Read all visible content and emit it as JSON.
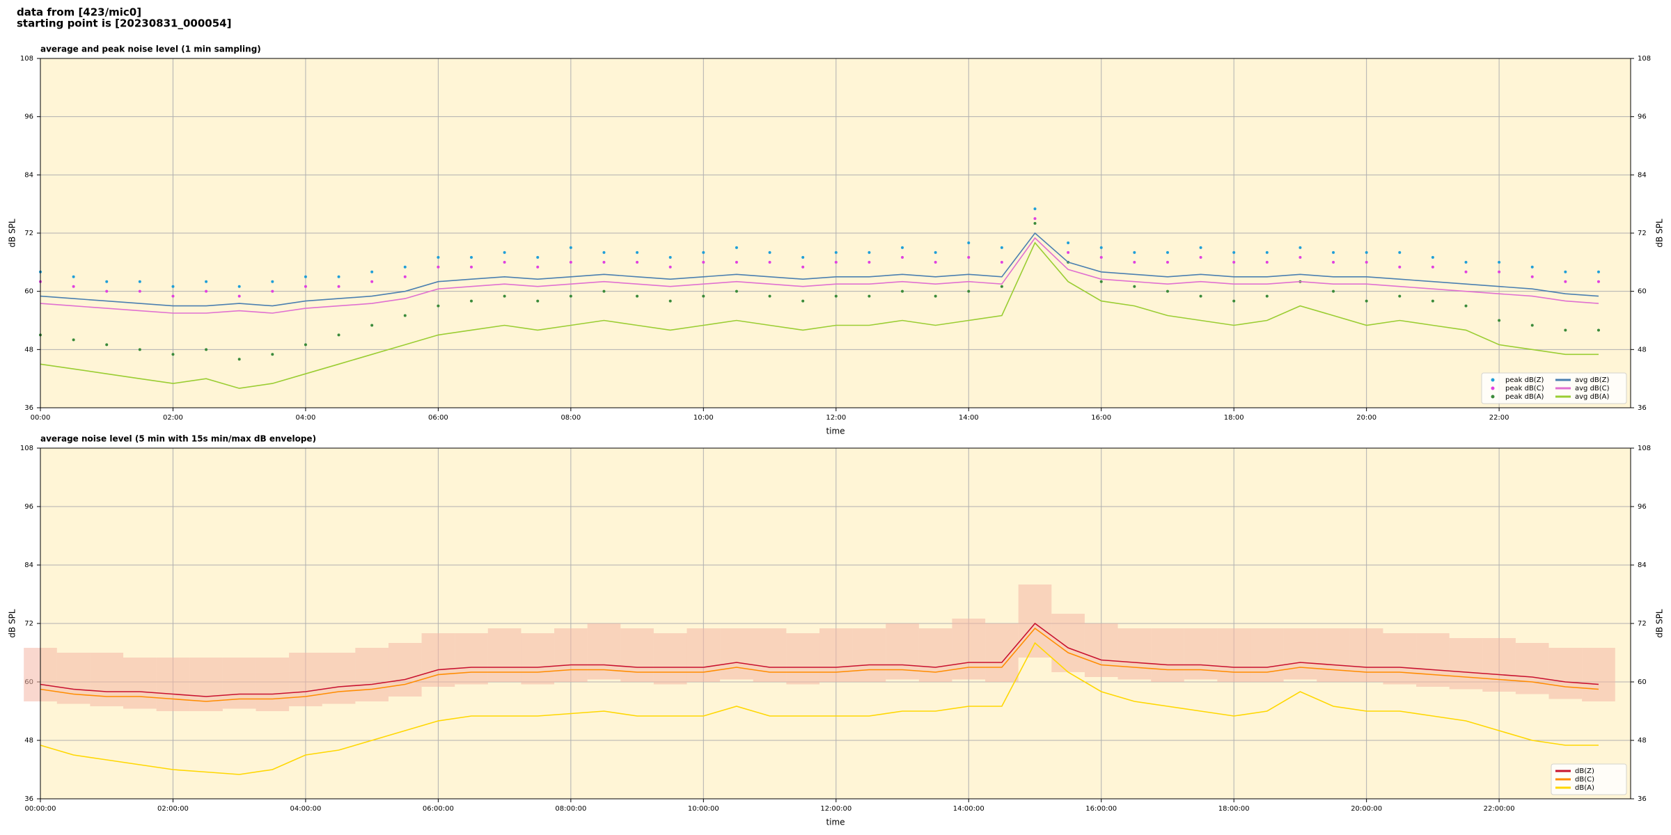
{
  "header": {
    "source": "data from [423/mic0]",
    "start": "starting point is [20230831_000054]"
  },
  "chart_data": [
    {
      "type": "line",
      "title": "average and peak noise level (1 min sampling)",
      "xlabel": "time",
      "ylabel": "dB SPL",
      "grid": true,
      "legend": "lower right",
      "legend_columns": 2,
      "background": "#fff5d6",
      "xlim": [
        0,
        1439
      ],
      "xticks": [
        {
          "value": 0,
          "label": "00:00"
        },
        {
          "value": 120,
          "label": "02:00"
        },
        {
          "value": 240,
          "label": "04:00"
        },
        {
          "value": 360,
          "label": "06:00"
        },
        {
          "value": 480,
          "label": "08:00"
        },
        {
          "value": 600,
          "label": "10:00"
        },
        {
          "value": 720,
          "label": "12:00"
        },
        {
          "value": 840,
          "label": "14:00"
        },
        {
          "value": 960,
          "label": "16:00"
        },
        {
          "value": 1080,
          "label": "18:00"
        },
        {
          "value": 1200,
          "label": "20:00"
        },
        {
          "value": 1320,
          "label": "22:00"
        }
      ],
      "ylim": [
        36,
        108
      ],
      "yticks": [
        36,
        48,
        60,
        72,
        84,
        96,
        108
      ],
      "x": [
        0,
        30,
        60,
        90,
        120,
        150,
        180,
        210,
        240,
        270,
        300,
        330,
        360,
        390,
        420,
        450,
        480,
        510,
        540,
        570,
        600,
        630,
        660,
        690,
        720,
        750,
        780,
        810,
        840,
        870,
        900,
        930,
        960,
        990,
        1020,
        1050,
        1080,
        1110,
        1140,
        1170,
        1200,
        1230,
        1260,
        1290,
        1320,
        1350,
        1380,
        1410
      ],
      "series": [
        {
          "name": "peak dB(Z)",
          "type": "scatter",
          "color": "#1f9fd8",
          "values": [
            64,
            63,
            62,
            62,
            61,
            62,
            61,
            62,
            63,
            63,
            64,
            65,
            67,
            67,
            68,
            67,
            69,
            68,
            68,
            67,
            68,
            69,
            68,
            67,
            68,
            68,
            69,
            68,
            70,
            69,
            77,
            70,
            69,
            68,
            68,
            69,
            68,
            68,
            69,
            68,
            68,
            68,
            67,
            66,
            66,
            65,
            64,
            64
          ]
        },
        {
          "name": "peak dB(C)",
          "type": "scatter",
          "color": "#e040e0",
          "values": [
            62,
            61,
            60,
            60,
            59,
            60,
            59,
            60,
            61,
            61,
            62,
            63,
            65,
            65,
            66,
            65,
            66,
            66,
            66,
            65,
            66,
            66,
            66,
            65,
            66,
            66,
            67,
            66,
            67,
            66,
            75,
            68,
            67,
            66,
            66,
            67,
            66,
            66,
            67,
            66,
            66,
            65,
            65,
            64,
            64,
            63,
            62,
            62
          ]
        },
        {
          "name": "peak dB(A)",
          "type": "scatter",
          "color": "#3a8a3a",
          "values": [
            51,
            50,
            49,
            48,
            47,
            48,
            46,
            47,
            49,
            51,
            53,
            55,
            57,
            58,
            59,
            58,
            59,
            60,
            59,
            58,
            59,
            60,
            59,
            58,
            59,
            59,
            60,
            59,
            60,
            61,
            74,
            66,
            62,
            61,
            60,
            59,
            58,
            59,
            62,
            60,
            58,
            59,
            58,
            57,
            54,
            53,
            52,
            52
          ]
        },
        {
          "name": "avg dB(Z)",
          "type": "line",
          "color": "#4a7fb0",
          "values": [
            59,
            58.5,
            58,
            57.5,
            57,
            57,
            57.5,
            57,
            58,
            58.5,
            59,
            60,
            62,
            62.5,
            63,
            62.5,
            63,
            63.5,
            63,
            62.5,
            63,
            63.5,
            63,
            62.5,
            63,
            63,
            63.5,
            63,
            63.5,
            63,
            72,
            66,
            64,
            63.5,
            63,
            63.5,
            63,
            63,
            63.5,
            63,
            63,
            62.5,
            62,
            61.5,
            61,
            60.5,
            59.5,
            59
          ]
        },
        {
          "name": "avg dB(C)",
          "type": "line",
          "color": "#e070d0",
          "values": [
            57.5,
            57,
            56.5,
            56,
            55.5,
            55.5,
            56,
            55.5,
            56.5,
            57,
            57.5,
            58.5,
            60.5,
            61,
            61.5,
            61,
            61.5,
            62,
            61.5,
            61,
            61.5,
            62,
            61.5,
            61,
            61.5,
            61.5,
            62,
            61.5,
            62,
            61.5,
            71,
            64.5,
            62.5,
            62,
            61.5,
            62,
            61.5,
            61.5,
            62,
            61.5,
            61.5,
            61,
            60.5,
            60,
            59.5,
            59,
            58,
            57.5
          ]
        },
        {
          "name": "avg dB(A)",
          "type": "line",
          "color": "#9acd32",
          "values": [
            45,
            44,
            43,
            42,
            41,
            42,
            40,
            41,
            43,
            45,
            47,
            49,
            51,
            52,
            53,
            52,
            53,
            54,
            53,
            52,
            53,
            54,
            53,
            52,
            53,
            53,
            54,
            53,
            54,
            55,
            70,
            62,
            58,
            57,
            55,
            54,
            53,
            54,
            57,
            55,
            53,
            54,
            53,
            52,
            49,
            48,
            47,
            47
          ]
        }
      ]
    },
    {
      "type": "line",
      "title": "average noise level (5 min with 15s min/max dB envelope)",
      "xlabel": "time",
      "ylabel": "dB SPL",
      "grid": true,
      "legend": "lower right",
      "legend_columns": 1,
      "background": "#fff5d6",
      "xlim": [
        0,
        1439
      ],
      "xticks": [
        {
          "value": 0,
          "label": "00:00:00"
        },
        {
          "value": 120,
          "label": "02:00:00"
        },
        {
          "value": 240,
          "label": "04:00:00"
        },
        {
          "value": 360,
          "label": "06:00:00"
        },
        {
          "value": 480,
          "label": "08:00:00"
        },
        {
          "value": 600,
          "label": "10:00:00"
        },
        {
          "value": 720,
          "label": "12:00:00"
        },
        {
          "value": 840,
          "label": "14:00:00"
        },
        {
          "value": 960,
          "label": "16:00:00"
        },
        {
          "value": 1080,
          "label": "18:00:00"
        },
        {
          "value": 1200,
          "label": "20:00:00"
        },
        {
          "value": 1320,
          "label": "22:00:00"
        }
      ],
      "ylim": [
        36,
        108
      ],
      "yticks": [
        36,
        48,
        60,
        72,
        84,
        96,
        108
      ],
      "x": [
        0,
        30,
        60,
        90,
        120,
        150,
        180,
        210,
        240,
        270,
        300,
        330,
        360,
        390,
        420,
        450,
        480,
        510,
        540,
        570,
        600,
        630,
        660,
        690,
        720,
        750,
        780,
        810,
        840,
        870,
        900,
        930,
        960,
        990,
        1020,
        1050,
        1080,
        1110,
        1140,
        1170,
        1200,
        1230,
        1260,
        1290,
        1320,
        1350,
        1380,
        1410
      ],
      "envelope": {
        "color": "#f4b6a6",
        "upper": [
          67,
          66,
          66,
          65,
          65,
          65,
          65,
          65,
          66,
          66,
          67,
          68,
          70,
          70,
          71,
          70,
          71,
          72,
          71,
          70,
          71,
          71,
          71,
          70,
          71,
          71,
          72,
          71,
          73,
          72,
          80,
          74,
          72,
          71,
          71,
          71,
          71,
          71,
          71,
          71,
          71,
          70,
          70,
          69,
          69,
          68,
          67,
          67
        ],
        "lower": [
          56,
          55.5,
          55,
          54.5,
          54,
          54,
          54.5,
          54,
          55,
          55.5,
          56,
          57,
          59,
          59.5,
          60,
          59.5,
          60,
          60.5,
          60,
          59.5,
          60,
          60.5,
          60,
          59.5,
          60,
          60,
          60.5,
          60,
          60.5,
          60,
          65,
          62,
          61,
          60.5,
          60,
          60.5,
          60,
          60,
          60.5,
          60,
          60,
          59.5,
          59,
          58.5,
          58,
          57.5,
          56.5,
          56
        ]
      },
      "series": [
        {
          "name": "dB(Z)",
          "type": "line",
          "color": "#c8102e",
          "values": [
            59.5,
            58.5,
            58,
            58,
            57.5,
            57,
            57.5,
            57.5,
            58,
            59,
            59.5,
            60.5,
            62.5,
            63,
            63,
            63,
            63.5,
            63.5,
            63,
            63,
            63,
            64,
            63,
            63,
            63,
            63.5,
            63.5,
            63,
            64,
            64,
            72,
            67,
            64.5,
            64,
            63.5,
            63.5,
            63,
            63,
            64,
            63.5,
            63,
            63,
            62.5,
            62,
            61.5,
            61,
            60,
            59.5
          ]
        },
        {
          "name": "dB(C)",
          "type": "line",
          "color": "#ff8c00",
          "values": [
            58.5,
            57.5,
            57,
            57,
            56.5,
            56,
            56.5,
            56.5,
            57,
            58,
            58.5,
            59.5,
            61.5,
            62,
            62,
            62,
            62.5,
            62.5,
            62,
            62,
            62,
            63,
            62,
            62,
            62,
            62.5,
            62.5,
            62,
            63,
            63,
            71,
            66,
            63.5,
            63,
            62.5,
            62.5,
            62,
            62,
            63,
            62.5,
            62,
            62,
            61.5,
            61,
            60.5,
            60,
            59,
            58.5
          ]
        },
        {
          "name": "dB(A)",
          "type": "line",
          "color": "#ffd700",
          "values": [
            47,
            45,
            44,
            43,
            42,
            41.5,
            41,
            42,
            45,
            46,
            48,
            50,
            52,
            53,
            53,
            53,
            53.5,
            54,
            53,
            53,
            53,
            55,
            53,
            53,
            53,
            53,
            54,
            54,
            55,
            55,
            68,
            62,
            58,
            56,
            55,
            54,
            53,
            54,
            58,
            55,
            54,
            54,
            53,
            52,
            50,
            48,
            47,
            47
          ]
        }
      ]
    }
  ]
}
